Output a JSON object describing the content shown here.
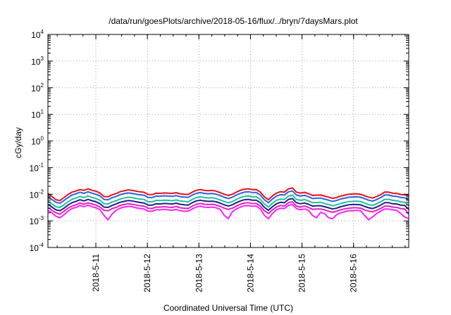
{
  "chart_data": {
    "type": "line",
    "title": "/data/run/goesPlots/archive/2018-05-16/flux/../bryn/7daysMars.plot",
    "xlabel": "Coordinated Universal Time (UTC)",
    "ylabel": "cGy/day",
    "yscale": "log",
    "ylim": [
      0.0001,
      10000
    ],
    "xlim": [
      0,
      7
    ],
    "grid": true,
    "y_ticks": [
      {
        "base": "10",
        "exp": "4",
        "value": 10000
      },
      {
        "base": "10",
        "exp": "3",
        "value": 1000
      },
      {
        "base": "10",
        "exp": "2",
        "value": 100
      },
      {
        "base": "10",
        "exp": "1",
        "value": 10
      },
      {
        "base": "10",
        "exp": "0",
        "value": 1
      },
      {
        "base": "10",
        "exp": "-1",
        "value": 0.1
      },
      {
        "base": "10",
        "exp": "-2",
        "value": 0.01
      },
      {
        "base": "10",
        "exp": "-3",
        "value": 0.001
      },
      {
        "base": "10",
        "exp": "-4",
        "value": 0.0001
      }
    ],
    "x_ticks": [
      {
        "label": "2018-5-11",
        "value": 0.93
      },
      {
        "label": "2018-5-12",
        "value": 1.93
      },
      {
        "label": "2018-5-13",
        "value": 2.93
      },
      {
        "label": "2018-5-14",
        "value": 3.93
      },
      {
        "label": "2018-5-15",
        "value": 4.93
      },
      {
        "label": "2018-5-16",
        "value": 5.93
      }
    ],
    "series": [
      {
        "color": "#e8101a",
        "values": [
          0.0107,
          0.0082,
          0.0062,
          0.0058,
          0.0075,
          0.0098,
          0.012,
          0.0132,
          0.015,
          0.014,
          0.016,
          0.0139,
          0.013,
          0.011,
          0.0082,
          0.008,
          0.0095,
          0.0105,
          0.0125,
          0.0135,
          0.0145,
          0.014,
          0.013,
          0.0123,
          0.0118,
          0.0098,
          0.0097,
          0.011,
          0.0108,
          0.0112,
          0.011,
          0.0108,
          0.0115,
          0.0104,
          0.01,
          0.0098,
          0.012,
          0.014,
          0.015,
          0.014,
          0.0135,
          0.0139,
          0.013,
          0.0115,
          0.01,
          0.009,
          0.01,
          0.012,
          0.014,
          0.0155,
          0.016,
          0.015,
          0.015,
          0.012,
          0.008,
          0.0062,
          0.0086,
          0.011,
          0.0125,
          0.012,
          0.0159,
          0.0172,
          0.012,
          0.011,
          0.0118,
          0.0105,
          0.009,
          0.0092,
          0.0093,
          0.0085,
          0.0078,
          0.007,
          0.0075,
          0.0085,
          0.0092,
          0.01,
          0.0102,
          0.0104,
          0.01,
          0.0088,
          0.0078,
          0.0072,
          0.0082,
          0.0097,
          0.0121,
          0.012,
          0.011,
          0.0108,
          0.0098,
          0.0095,
          0.009
        ]
      },
      {
        "color": "#3060e0",
        "values": [
          0.008,
          0.0063,
          0.005,
          0.0046,
          0.0058,
          0.0075,
          0.0093,
          0.0104,
          0.012,
          0.0108,
          0.0124,
          0.011,
          0.01,
          0.0086,
          0.0064,
          0.0062,
          0.0074,
          0.0082,
          0.0096,
          0.0105,
          0.0112,
          0.0108,
          0.01,
          0.0095,
          0.0091,
          0.0076,
          0.0075,
          0.0085,
          0.0084,
          0.0087,
          0.0085,
          0.0083,
          0.0089,
          0.0081,
          0.0078,
          0.0076,
          0.0093,
          0.0108,
          0.0116,
          0.0108,
          0.0104,
          0.0107,
          0.01,
          0.0089,
          0.0077,
          0.0069,
          0.0077,
          0.0093,
          0.0108,
          0.012,
          0.0124,
          0.0116,
          0.0116,
          0.0093,
          0.0062,
          0.0048,
          0.0066,
          0.0085,
          0.0096,
          0.0093,
          0.0123,
          0.0133,
          0.0093,
          0.0085,
          0.0091,
          0.0081,
          0.0069,
          0.0071,
          0.0072,
          0.0066,
          0.006,
          0.0054,
          0.0058,
          0.0066,
          0.0071,
          0.0077,
          0.0079,
          0.008,
          0.0077,
          0.0068,
          0.006,
          0.0055,
          0.0063,
          0.0075,
          0.0093,
          0.0093,
          0.0085,
          0.0083,
          0.0076,
          0.0073,
          0.006
        ]
      },
      {
        "color": "#20c0a0",
        "values": [
          0.0055,
          0.0043,
          0.0034,
          0.0032,
          0.004,
          0.0052,
          0.0064,
          0.0072,
          0.0083,
          0.0075,
          0.0086,
          0.0076,
          0.0069,
          0.0059,
          0.0044,
          0.0043,
          0.0051,
          0.0057,
          0.0066,
          0.0072,
          0.0077,
          0.0075,
          0.0069,
          0.0066,
          0.0063,
          0.0052,
          0.0052,
          0.0059,
          0.0058,
          0.006,
          0.0059,
          0.0057,
          0.0061,
          0.0056,
          0.0054,
          0.0052,
          0.0064,
          0.0075,
          0.008,
          0.0075,
          0.0072,
          0.0074,
          0.0069,
          0.0061,
          0.0053,
          0.0048,
          0.0053,
          0.0064,
          0.0075,
          0.0083,
          0.0086,
          0.008,
          0.008,
          0.0064,
          0.0043,
          0.0033,
          0.0046,
          0.0059,
          0.0066,
          0.0064,
          0.0085,
          0.0092,
          0.0064,
          0.0059,
          0.0063,
          0.0056,
          0.0048,
          0.0049,
          0.005,
          0.0045,
          0.0041,
          0.0037,
          0.004,
          0.0045,
          0.0049,
          0.0053,
          0.0054,
          0.0055,
          0.0053,
          0.0047,
          0.0041,
          0.0038,
          0.0044,
          0.0052,
          0.0064,
          0.0064,
          0.0059,
          0.0057,
          0.0052,
          0.005,
          0.0038
        ]
      },
      {
        "color": "#202080",
        "values": [
          0.0042,
          0.0033,
          0.0026,
          0.0024,
          0.003,
          0.0039,
          0.0048,
          0.0054,
          0.0062,
          0.0056,
          0.0064,
          0.0057,
          0.0052,
          0.0044,
          0.0033,
          0.0032,
          0.0038,
          0.0043,
          0.005,
          0.0054,
          0.0058,
          0.0056,
          0.0052,
          0.0049,
          0.0047,
          0.0039,
          0.0039,
          0.0044,
          0.0043,
          0.0045,
          0.0044,
          0.0043,
          0.0046,
          0.0042,
          0.004,
          0.0039,
          0.0048,
          0.0056,
          0.006,
          0.0056,
          0.0054,
          0.0055,
          0.0052,
          0.0046,
          0.004,
          0.0036,
          0.004,
          0.0048,
          0.0056,
          0.0062,
          0.0064,
          0.006,
          0.006,
          0.0048,
          0.0032,
          0.0025,
          0.0034,
          0.0044,
          0.005,
          0.0048,
          0.0064,
          0.0069,
          0.0048,
          0.0044,
          0.0047,
          0.0042,
          0.0036,
          0.0037,
          0.0037,
          0.0034,
          0.0031,
          0.0028,
          0.003,
          0.0034,
          0.0037,
          0.004,
          0.0041,
          0.0041,
          0.004,
          0.0035,
          0.0031,
          0.0029,
          0.0033,
          0.0039,
          0.0048,
          0.0048,
          0.0044,
          0.0043,
          0.0039,
          0.0038,
          0.0027
        ]
      },
      {
        "color": "#e020c0",
        "values": [
          0.0032,
          0.0025,
          0.002,
          0.0018,
          0.0023,
          0.003,
          0.0036,
          0.004,
          0.0047,
          0.0042,
          0.0048,
          0.0043,
          0.0039,
          0.0033,
          0.0025,
          0.0024,
          0.0029,
          0.0032,
          0.0038,
          0.0041,
          0.0044,
          0.0042,
          0.0039,
          0.0037,
          0.0036,
          0.003,
          0.0029,
          0.0033,
          0.0033,
          0.0034,
          0.0033,
          0.0032,
          0.0035,
          0.0031,
          0.003,
          0.0029,
          0.0036,
          0.0042,
          0.0045,
          0.0042,
          0.0041,
          0.0042,
          0.0039,
          0.0035,
          0.003,
          0.0027,
          0.003,
          0.0036,
          0.0042,
          0.0047,
          0.0048,
          0.0045,
          0.0045,
          0.0036,
          0.0024,
          0.0019,
          0.0026,
          0.0033,
          0.0038,
          0.0036,
          0.0048,
          0.0052,
          0.0036,
          0.0033,
          0.0036,
          0.0032,
          0.0027,
          0.0028,
          0.0028,
          0.0026,
          0.0023,
          0.0021,
          0.0023,
          0.0026,
          0.0028,
          0.003,
          0.0031,
          0.0031,
          0.003,
          0.0026,
          0.0023,
          0.0022,
          0.0025,
          0.0029,
          0.0036,
          0.0036,
          0.0033,
          0.0032,
          0.0029,
          0.0028,
          0.0018
        ]
      },
      {
        "color": "#ff20ff",
        "values": [
          0.0025,
          0.002,
          0.0015,
          0.0013,
          0.0017,
          0.0023,
          0.0029,
          0.0032,
          0.0038,
          0.0034,
          0.0039,
          0.0034,
          0.0031,
          0.0026,
          0.0016,
          0.0011,
          0.0018,
          0.0025,
          0.003,
          0.0033,
          0.0035,
          0.0034,
          0.0031,
          0.0029,
          0.0028,
          0.0023,
          0.0023,
          0.0026,
          0.0026,
          0.0027,
          0.0026,
          0.0025,
          0.0027,
          0.0024,
          0.0023,
          0.0023,
          0.0028,
          0.0033,
          0.0036,
          0.0033,
          0.0032,
          0.0033,
          0.0031,
          0.0027,
          0.0016,
          0.0012,
          0.0022,
          0.0028,
          0.0033,
          0.0037,
          0.0038,
          0.0036,
          0.0036,
          0.0028,
          0.0016,
          0.0012,
          0.0019,
          0.0026,
          0.003,
          0.0029,
          0.0038,
          0.0041,
          0.0029,
          0.0026,
          0.0028,
          0.0025,
          0.0016,
          0.0013,
          0.0021,
          0.0019,
          0.0013,
          0.0012,
          0.0017,
          0.002,
          0.0022,
          0.0024,
          0.0024,
          0.0025,
          0.0024,
          0.0016,
          0.0011,
          0.0014,
          0.0019,
          0.0023,
          0.0028,
          0.0028,
          0.0026,
          0.0025,
          0.0019,
          0.0014,
          0.0012
        ]
      }
    ]
  }
}
